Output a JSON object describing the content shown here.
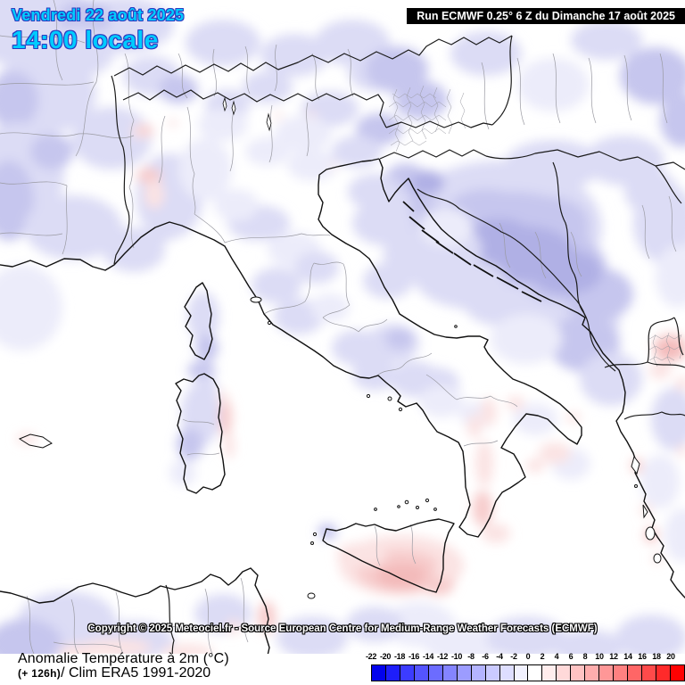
{
  "header": {
    "date": "Vendredi 22 août 2025",
    "time": "14:00 locale",
    "run_info": "Run ECMWF 0.25° 6 Z du Dimanche 17 août 2025"
  },
  "footer": {
    "copyright": "Copyright © 2025 Meteociel.fr - Source European Centre for Medium-Range Weather Forecasts (ECMWF)",
    "product_title": "Anomalie Température à 2m (°C)",
    "lead_time": "(+ 126h)",
    "climatology": "/ Clim ERA5 1991-2020"
  },
  "legend": {
    "tick_labels": [
      "-22",
      "-20",
      "-18",
      "-16",
      "-14",
      "-12",
      "-10",
      "-8",
      "-6",
      "-4",
      "-2",
      "0",
      "2",
      "4",
      "6",
      "8",
      "10",
      "12",
      "14",
      "16",
      "18",
      "20"
    ],
    "cell_colors": [
      "#0202ec",
      "#1e1efa",
      "#3c3cff",
      "#5454ff",
      "#6c6cff",
      "#8484ff",
      "#9c9cff",
      "#b4b4ff",
      "#cacaff",
      "#dedeff",
      "#f2f2ff",
      "#ffffff",
      "#ffeded",
      "#ffd9d9",
      "#ffc3c3",
      "#ffadad",
      "#ff9797",
      "#ff8181",
      "#ff6666",
      "#ff4a4a",
      "#ff2a2a",
      "#ff0202"
    ]
  },
  "map": {
    "anomaly_colors": {
      "light_blue": "#dcdcf5",
      "medium_blue": "#c6c6ee",
      "deep_blue": "#b0b0e5",
      "extra_light_blue": "#ececfa",
      "light_pink": "#fbe3e3",
      "medium_pink": "#f7cccc",
      "deep_pink": "#f3baba"
    }
  }
}
